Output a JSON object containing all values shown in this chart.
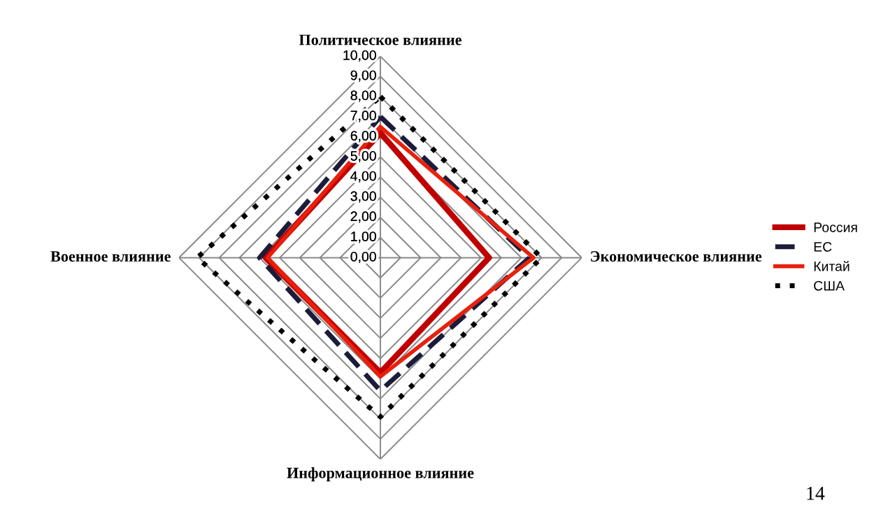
{
  "chart_data": {
    "type": "radar",
    "categories": [
      "Политическое влияние",
      "Экономическое влияние",
      "Информационное влияние",
      "Военное влияние"
    ],
    "series": [
      {
        "name": "Россия",
        "color": "#c00000",
        "values": [
          6.2,
          5.4,
          5.7,
          5.7
        ],
        "line_style": "solid"
      },
      {
        "name": "ЕС",
        "color": "#1c1c3a",
        "values": [
          7.0,
          7.4,
          6.6,
          6.0
        ],
        "line_style": "dashed"
      },
      {
        "name": "Китай",
        "color": "#e8200c",
        "values": [
          6.5,
          7.6,
          5.9,
          5.6
        ],
        "line_style": "solid"
      },
      {
        "name": "США",
        "color": "#000000",
        "values": [
          8.0,
          8.0,
          7.9,
          9.1
        ],
        "line_style": "dotted"
      }
    ],
    "ylim": [
      0,
      10
    ],
    "yticks": [
      {
        "value": 0,
        "label": "0,00"
      },
      {
        "value": 1,
        "label": "1,00"
      },
      {
        "value": 2,
        "label": "2,00"
      },
      {
        "value": 3,
        "label": "3,00"
      },
      {
        "value": 4,
        "label": "4,00"
      },
      {
        "value": 5,
        "label": "5,00"
      },
      {
        "value": 6,
        "label": "6,00"
      },
      {
        "value": 7,
        "label": "7,00"
      },
      {
        "value": 8,
        "label": "8,00"
      },
      {
        "value": 9,
        "label": "9,00"
      },
      {
        "value": 10,
        "label": "10,00"
      }
    ],
    "grid": true,
    "legend": "right",
    "annotations": [
      "14"
    ]
  }
}
